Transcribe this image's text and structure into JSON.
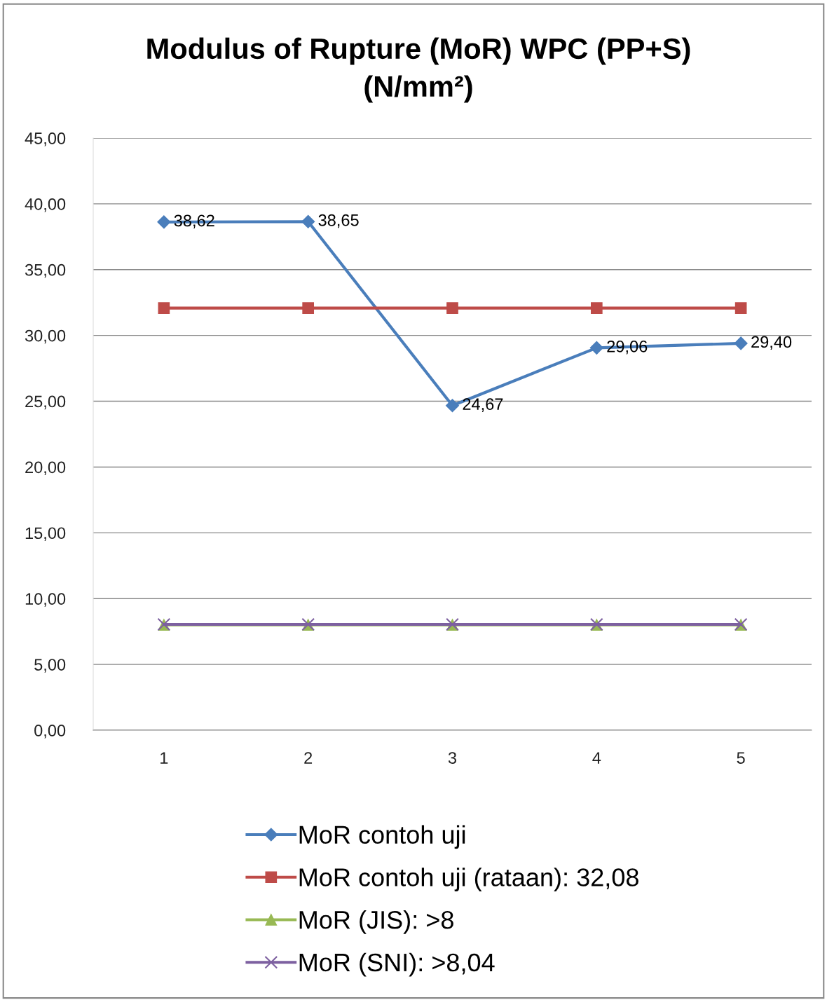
{
  "chart_data": {
    "type": "line",
    "title": "Modulus of Rupture (MoR) WPC (PP+S)\n(N/mm²)",
    "categories": [
      "1",
      "2",
      "3",
      "4",
      "5"
    ],
    "series": [
      {
        "name": "MoR contoh uji",
        "color": "#4a7ebb",
        "marker": "diamond",
        "values": [
          38.62,
          38.65,
          24.67,
          29.06,
          29.4
        ],
        "value_labels": [
          "38,62",
          "38,65",
          "24,67",
          "29,06",
          "29,40"
        ]
      },
      {
        "name": "MoR contoh uji (rataan): 32,08",
        "color": "#be4b48",
        "marker": "square",
        "values": [
          32.08,
          32.08,
          32.08,
          32.08,
          32.08
        ]
      },
      {
        "name": "MoR (JIS): >8",
        "color": "#98b954",
        "marker": "triangle",
        "values": [
          8,
          8,
          8,
          8,
          8
        ]
      },
      {
        "name": "MoR (SNI): >8,04",
        "color": "#7d60a0",
        "marker": "cross",
        "values": [
          8.04,
          8.04,
          8.04,
          8.04,
          8.04
        ]
      }
    ],
    "ylim": [
      0,
      45
    ],
    "yticks": [
      {
        "value": 0,
        "label": "0,00"
      },
      {
        "value": 5,
        "label": "5,00"
      },
      {
        "value": 10,
        "label": "10,00"
      },
      {
        "value": 15,
        "label": "15,00"
      },
      {
        "value": 20,
        "label": "20,00"
      },
      {
        "value": 25,
        "label": "25,00"
      },
      {
        "value": 30,
        "label": "30,00"
      },
      {
        "value": 35,
        "label": "35,00"
      },
      {
        "value": 40,
        "label": "40,00"
      },
      {
        "value": 45,
        "label": "45,00"
      }
    ],
    "grid": "y",
    "legend": "bottom",
    "line_style": "solid"
  }
}
